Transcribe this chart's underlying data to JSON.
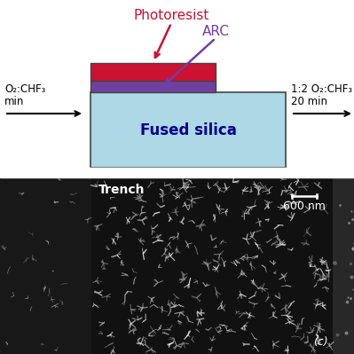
{
  "bg_color": "#ffffff",
  "fused_silica_color": "#add8e6",
  "fused_silica_label": "Fused silica",
  "fused_silica_label_color": "#00008b",
  "arc_color": "#7040a0",
  "arc_label": "ARC",
  "arc_label_color": "#7040a0",
  "photoresist_color": "#cc1133",
  "photoresist_label": "Photoresist",
  "photoresist_label_color": "#cc1133",
  "left_text_line1": "O₂:CHF₃",
  "left_text_line2": "min",
  "right_text_line1": "1:2 O₂:CHF₃",
  "right_text_line2": "20 min",
  "sem_label": "Trench",
  "sem_scale_label": "600 nm",
  "sem_panel_label": "(c)",
  "sem_bg_color": "#111111",
  "sem_text_color": "#ffffff"
}
